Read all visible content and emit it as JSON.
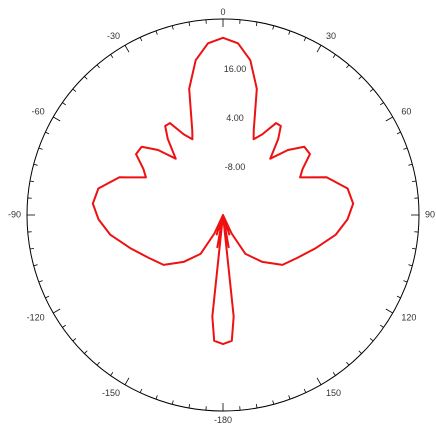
{
  "chart_data": {
    "type": "polar-line",
    "title": "",
    "angle_unit": "degrees",
    "zero_direction": "top",
    "angular_ticks": [
      0,
      30,
      60,
      90,
      120,
      150,
      180,
      -150,
      -120,
      -90,
      -60,
      -30
    ],
    "angular_labels": [
      "0",
      "30",
      "60",
      "90",
      "120",
      "150",
      "-180",
      "-150",
      "-120",
      "-90",
      "-60",
      "-30"
    ],
    "radial_range": [
      -20,
      28
    ],
    "radial_ticks": [
      16,
      4,
      -8
    ],
    "radial_labels": [
      "16.00",
      "4.00",
      "-8.00"
    ],
    "grid": false,
    "series": [
      {
        "color": "#ee1111",
        "points": [
          [
            -180,
            11.6
          ],
          [
            -176,
            10.9
          ],
          [
            -174,
            5.0
          ],
          [
            -172,
            -20.0
          ],
          [
            -170,
            -12.0
          ],
          [
            -168,
            -20.0
          ],
          [
            -166,
            -16.5
          ],
          [
            -164,
            -20.0
          ],
          [
            -162,
            -15.0
          ],
          [
            -160,
            -20.0
          ],
          [
            -155,
            -15.0
          ],
          [
            -150,
            -9.0
          ],
          [
            -140,
            -5.0
          ],
          [
            -130,
            -1.0
          ],
          [
            -120,
            1.0
          ],
          [
            -110,
            4.0
          ],
          [
            -100,
            8.0
          ],
          [
            -92,
            10.5
          ],
          [
            -85,
            12.0
          ],
          [
            -78,
            11.2
          ],
          [
            -70,
            7.0
          ],
          [
            -64,
            1.0
          ],
          [
            -60,
            2.5
          ],
          [
            -55,
            6.0
          ],
          [
            -50,
            6.0
          ],
          [
            -45,
            2.5
          ],
          [
            -40,
            -2.0
          ],
          [
            -36,
            3.0
          ],
          [
            -33,
            6.0
          ],
          [
            -30,
            6.0
          ],
          [
            -26,
            2.0
          ],
          [
            -22,
            0.0
          ],
          [
            -20,
            2.0
          ],
          [
            -15,
            12.0
          ],
          [
            -10,
            18.5
          ],
          [
            -5,
            22.2
          ],
          [
            0,
            23.4
          ],
          [
            5,
            22.2
          ],
          [
            10,
            18.5
          ],
          [
            15,
            12.0
          ],
          [
            20,
            2.0
          ],
          [
            22,
            0.0
          ],
          [
            26,
            2.0
          ],
          [
            30,
            6.0
          ],
          [
            33,
            6.0
          ],
          [
            36,
            3.0
          ],
          [
            40,
            -2.0
          ],
          [
            45,
            2.5
          ],
          [
            50,
            6.0
          ],
          [
            55,
            6.0
          ],
          [
            60,
            2.5
          ],
          [
            64,
            1.0
          ],
          [
            70,
            7.0
          ],
          [
            78,
            11.2
          ],
          [
            85,
            12.0
          ],
          [
            92,
            10.5
          ],
          [
            100,
            8.0
          ],
          [
            110,
            4.0
          ],
          [
            120,
            1.0
          ],
          [
            130,
            -1.0
          ],
          [
            140,
            -5.0
          ],
          [
            150,
            -9.0
          ],
          [
            155,
            -15.0
          ],
          [
            160,
            -20.0
          ],
          [
            162,
            -15.0
          ],
          [
            164,
            -20.0
          ],
          [
            166,
            -16.5
          ],
          [
            168,
            -20.0
          ],
          [
            170,
            -12.0
          ],
          [
            172,
            -20.0
          ],
          [
            174,
            5.0
          ],
          [
            176,
            10.9
          ],
          [
            180,
            11.6
          ]
        ]
      }
    ]
  }
}
